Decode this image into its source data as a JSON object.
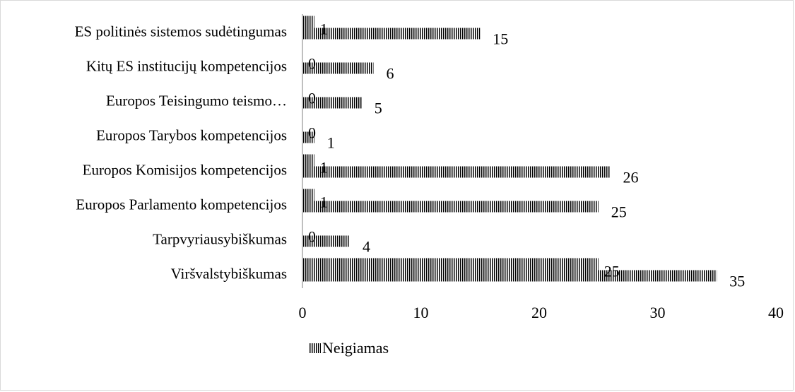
{
  "chart_data": {
    "type": "bar",
    "orientation": "horizontal",
    "categories": [
      "ES politinės sistemos sudėtingumas",
      "Kitų ES institucijų kompetencijos",
      "Europos Teisingumo teismo…",
      "Europos Tarybos kompetencijos",
      "Europos Komisijos kompetencijos",
      "Europos Parlamento kompetencijos",
      "Tarpvyriausybiškumas",
      "Viršvalstybiškumas"
    ],
    "series": [
      {
        "values": [
          15,
          6,
          5,
          1,
          26,
          25,
          4,
          35
        ]
      },
      {
        "name": "Neigiamas",
        "values": [
          1,
          0,
          0,
          0,
          1,
          1,
          0,
          25
        ]
      }
    ],
    "xlim": [
      0,
      40
    ],
    "x_ticks": [
      "0",
      "10",
      "20",
      "30",
      "40"
    ],
    "grid": false,
    "legend_position": "bottom",
    "colors": {
      "pattern": "#000000",
      "axis": "#bfbfbf",
      "border": "#d9d9d9"
    }
  }
}
